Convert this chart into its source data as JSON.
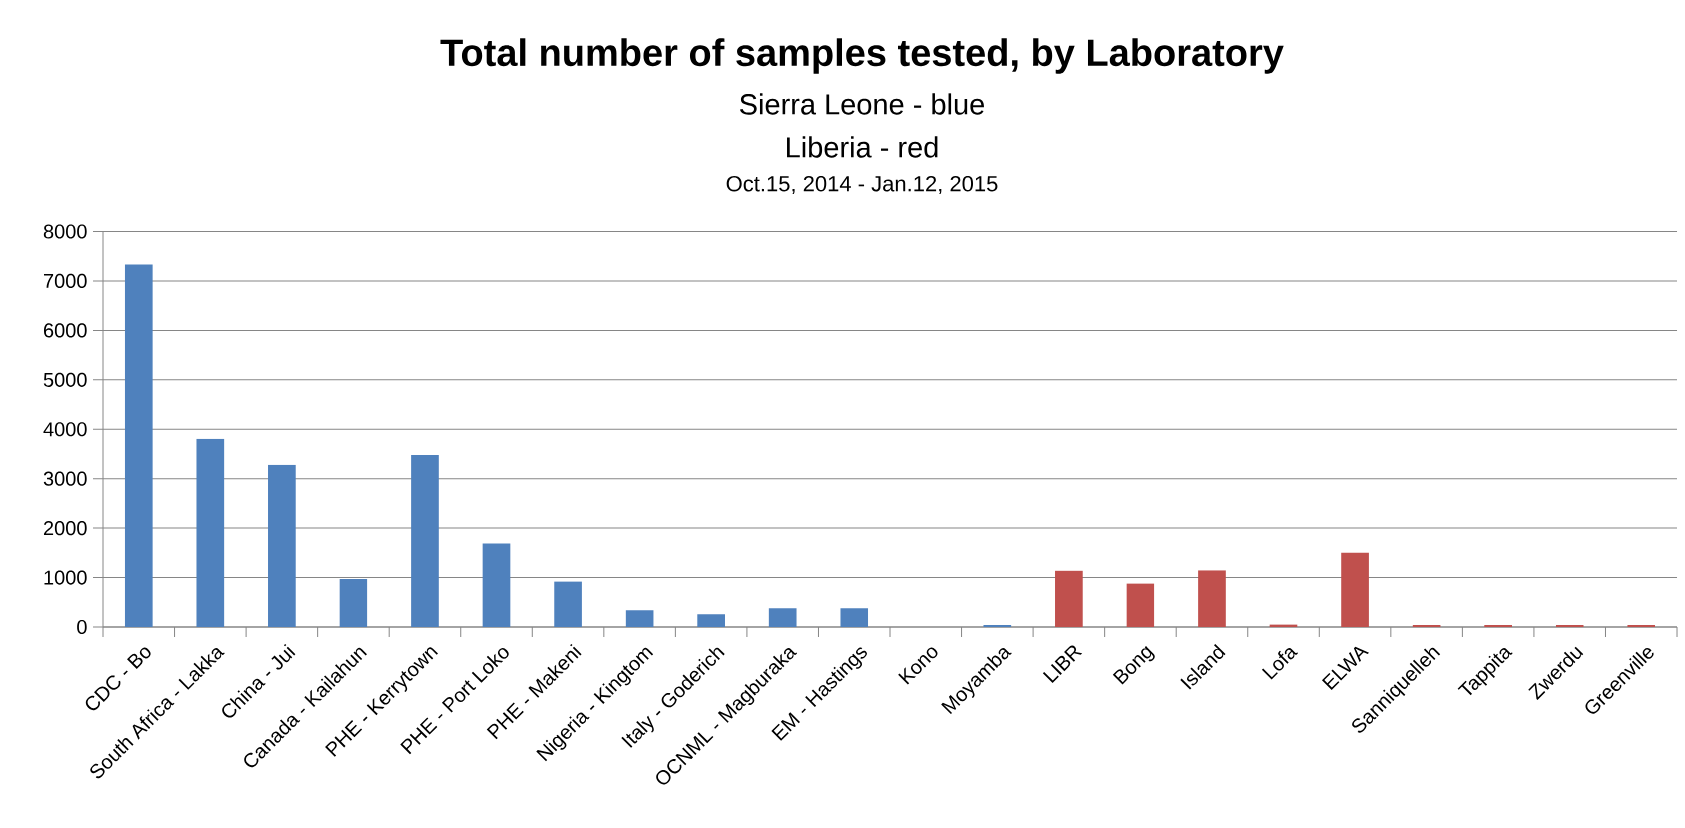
{
  "chart_data": {
    "type": "bar",
    "title": "Total number of samples tested, by Laboratory",
    "subtitle": "Sierra Leone - blue",
    "annotations": [
      "Liberia - red",
      "Oct.15, 2014 - Jan.12, 2015"
    ],
    "categories": [
      "CDC - Bo",
      "South Africa - Lakka",
      "China - Jui",
      "Canada - Kailahun",
      "PHE - Kerrytown",
      "PHE - Port Loko",
      "PHE - Makeni",
      "Nigeria - Kingtom",
      "Italy - Goderich",
      "OCNML - Magburaka",
      "EM - Hastings",
      "Kono",
      "Moyamba",
      "LIBR",
      "Bong",
      "Island",
      "Lofa",
      "ELWA",
      "Sanniquelleh",
      "Tappita",
      "Zwerdu",
      "Greenville"
    ],
    "values": [
      7330,
      3810,
      3280,
      970,
      3480,
      1690,
      920,
      340,
      260,
      380,
      380,
      0,
      40,
      1140,
      880,
      1150,
      50,
      1500,
      40,
      40,
      40,
      40
    ],
    "colors": [
      "#4f81bd",
      "#4f81bd",
      "#4f81bd",
      "#4f81bd",
      "#4f81bd",
      "#4f81bd",
      "#4f81bd",
      "#4f81bd",
      "#4f81bd",
      "#4f81bd",
      "#4f81bd",
      "#4f81bd",
      "#4f81bd",
      "#c0504d",
      "#c0504d",
      "#c0504d",
      "#c0504d",
      "#c0504d",
      "#c0504d",
      "#c0504d",
      "#c0504d",
      "#c0504d"
    ],
    "ylim": [
      0,
      8000
    ],
    "yticks": [
      0,
      1000,
      2000,
      3000,
      4000,
      5000,
      6000,
      7000,
      8000
    ],
    "grid": "y"
  }
}
